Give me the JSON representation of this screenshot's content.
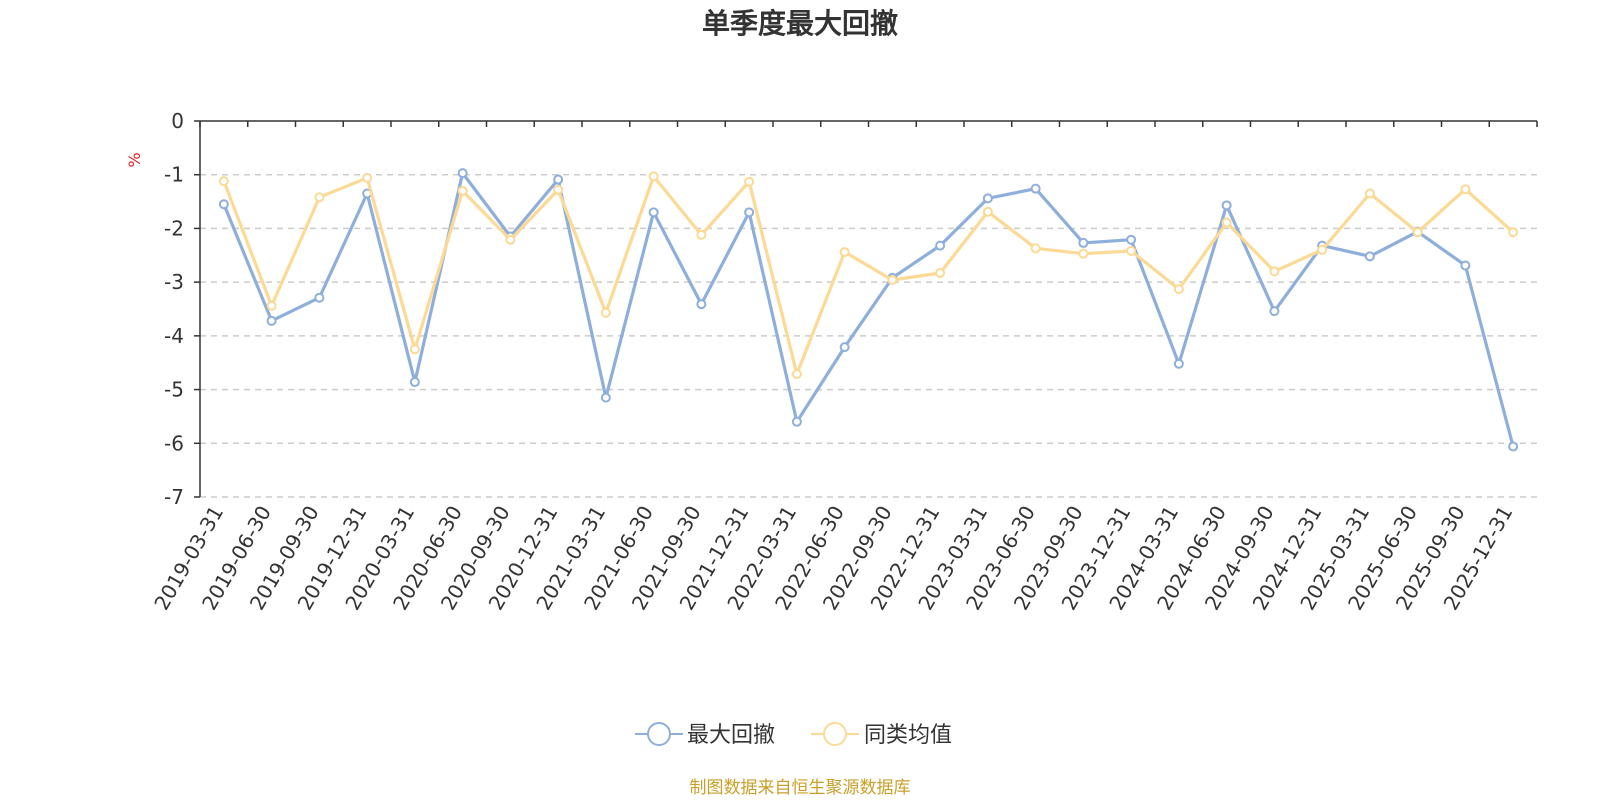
{
  "chart_data": {
    "type": "line",
    "title": "单季度最大回撤",
    "ylabel": "%",
    "ylim": [
      -7,
      0
    ],
    "yticks": [
      0,
      -1,
      -2,
      -3,
      -4,
      -5,
      -6,
      -7
    ],
    "grid": true,
    "legend_position": "bottom",
    "categories": [
      "2019-03-31",
      "2019-06-30",
      "2019-09-30",
      "2019-12-31",
      "2020-03-31",
      "2020-06-30",
      "2020-09-30",
      "2020-12-31",
      "2021-03-31",
      "2021-06-30",
      "2021-09-30",
      "2021-12-31",
      "2022-03-31",
      "2022-06-30",
      "2022-09-30",
      "2022-12-31",
      "2023-03-31",
      "2023-06-30",
      "2023-09-30",
      "2023-12-31",
      "2024-03-31",
      "2024-06-30",
      "2024-09-30",
      "2024-12-31",
      "2025-03-31",
      "2025-06-30",
      "2025-09-30",
      "2025-12-31"
    ],
    "series": [
      {
        "name": "最大回撤",
        "color": "#8eaedb",
        "values": [
          -1.55,
          -3.72,
          -3.29,
          -1.35,
          -4.86,
          -0.97,
          -2.15,
          -1.09,
          -5.15,
          -1.7,
          -3.41,
          -1.7,
          -5.6,
          -4.21,
          -2.92,
          -2.32,
          -1.44,
          -1.26,
          -2.27,
          -2.21,
          -4.52,
          -1.57,
          -3.54,
          -2.32,
          -2.52,
          -2.06,
          -2.69,
          -6.06
        ]
      },
      {
        "name": "同类均值",
        "color": "#fcd995",
        "values": [
          -1.12,
          -3.44,
          -1.42,
          -1.06,
          -4.25,
          -1.3,
          -2.21,
          -1.28,
          -3.57,
          -1.03,
          -2.12,
          -1.13,
          -4.71,
          -2.44,
          -2.96,
          -2.83,
          -1.69,
          -2.37,
          -2.47,
          -2.42,
          -3.13,
          -1.89,
          -2.8,
          -2.4,
          -1.35,
          -2.07,
          -1.27,
          -2.07
        ]
      }
    ],
    "source_note": "制图数据来自恒生聚源数据库",
    "colors": {
      "title": "#333333",
      "axis": "#333333",
      "grid": "#cccccc",
      "unit": "#e02020",
      "source": "#c8a028"
    }
  }
}
